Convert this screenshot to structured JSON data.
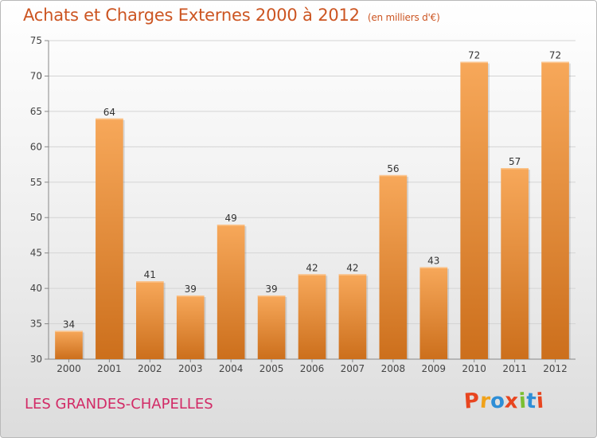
{
  "chart_data": {
    "type": "bar",
    "title": "Achats et Charges Externes 2000 à 2012",
    "subtitle": "(en milliers d'€)",
    "categories": [
      "2000",
      "2001",
      "2002",
      "2003",
      "2004",
      "2005",
      "2006",
      "2007",
      "2008",
      "2009",
      "2010",
      "2011",
      "2012"
    ],
    "values": [
      34,
      64,
      41,
      39,
      49,
      39,
      42,
      42,
      56,
      43,
      72,
      57,
      72
    ],
    "ylim": [
      30,
      75
    ],
    "yticks": [
      30,
      35,
      40,
      45,
      50,
      55,
      60,
      65,
      70,
      75
    ],
    "grid": true,
    "bar_color_light": "#f7a85a",
    "bar_color_dark": "#cc6f1c"
  },
  "footer": {
    "city": "LES GRANDES-CHAPELLES",
    "logo_text": "Proxiti",
    "logo_colors": [
      "#e8451f",
      "#f0a21a",
      "#2e8ed6",
      "#e8451f",
      "#7bbf32",
      "#2e8ed6",
      "#e8451f"
    ]
  }
}
